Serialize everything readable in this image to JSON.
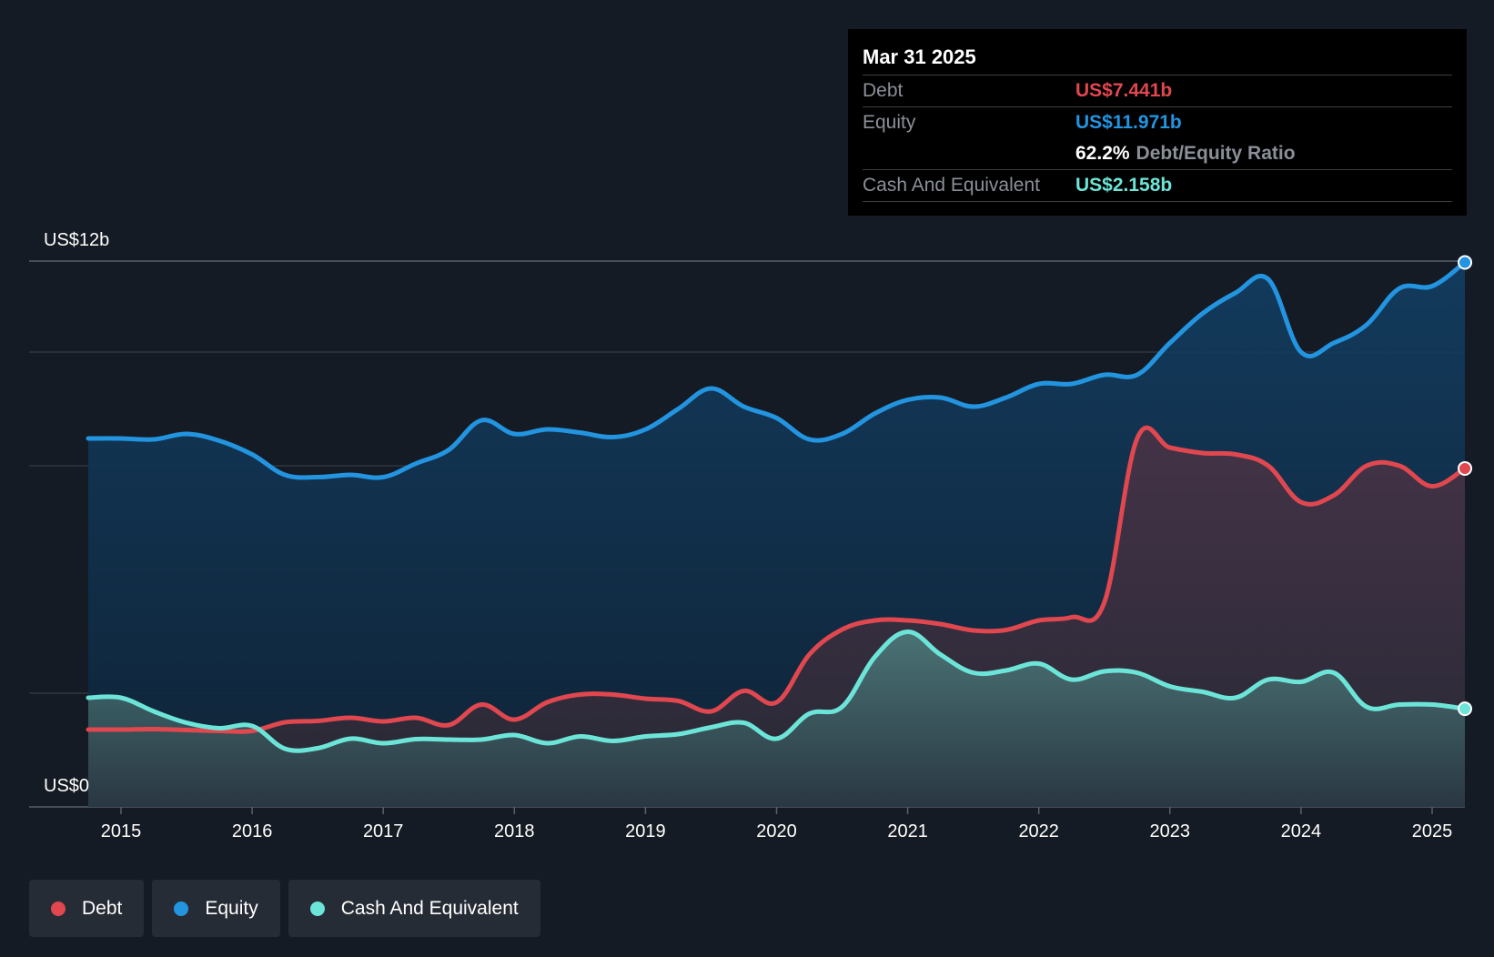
{
  "tooltip": {
    "date": "Mar 31 2025",
    "debt_label": "Debt",
    "debt_value": "US$7.441b",
    "equity_label": "Equity",
    "equity_value": "US$11.971b",
    "ratio_value": "62.2%",
    "ratio_label": "Debt/Equity Ratio",
    "cash_label": "Cash And Equivalent",
    "cash_value": "US$2.158b"
  },
  "colors": {
    "debt": "#e0474f",
    "equity": "#2394e0",
    "cash": "#6ce5d8",
    "background": "#151b24"
  },
  "legend": [
    {
      "label": "Debt",
      "color": "#e0474f"
    },
    {
      "label": "Equity",
      "color": "#2394e0"
    },
    {
      "label": "Cash And Equivalent",
      "color": "#6ce5d8"
    }
  ],
  "chart_data": {
    "type": "area",
    "title": "",
    "xlabel": "",
    "ylabel": "",
    "y_tick_labels": [
      "US$12b",
      "US$0"
    ],
    "x_tick_labels": [
      "2015",
      "2016",
      "2017",
      "2018",
      "2019",
      "2020",
      "2021",
      "2022",
      "2023",
      "2024",
      "2025"
    ],
    "x_ticks": [
      2015,
      2016,
      2017,
      2018,
      2019,
      2020,
      2021,
      2022,
      2023,
      2024,
      2025
    ],
    "xlim": [
      2014.3,
      2025.25
    ],
    "ylim": [
      0,
      12
    ],
    "gridlines": [
      2.5,
      7.5,
      10
    ],
    "series": [
      {
        "name": "Equity",
        "x": [
          2014.75,
          2015.0,
          2015.25,
          2015.5,
          2015.75,
          2016.0,
          2016.25,
          2016.5,
          2016.75,
          2017.0,
          2017.25,
          2017.5,
          2017.75,
          2018.0,
          2018.25,
          2018.5,
          2018.75,
          2019.0,
          2019.25,
          2019.5,
          2019.75,
          2020.0,
          2020.25,
          2020.5,
          2020.75,
          2021.0,
          2021.25,
          2021.5,
          2021.75,
          2022.0,
          2022.25,
          2022.5,
          2022.75,
          2023.0,
          2023.25,
          2023.5,
          2023.75,
          2024.0,
          2024.25,
          2024.5,
          2024.75,
          2025.0,
          2025.25
        ],
        "values": [
          8.1,
          8.1,
          8.08,
          8.2,
          8.05,
          7.75,
          7.3,
          7.25,
          7.3,
          7.25,
          7.55,
          7.85,
          8.5,
          8.2,
          8.3,
          8.23,
          8.13,
          8.3,
          8.75,
          9.2,
          8.8,
          8.55,
          8.08,
          8.2,
          8.65,
          8.95,
          9.0,
          8.8,
          9.0,
          9.3,
          9.3,
          9.5,
          9.5,
          10.2,
          10.85,
          11.3,
          11.6,
          10.0,
          10.2,
          10.6,
          11.4,
          11.45,
          11.971
        ]
      },
      {
        "name": "Debt",
        "x": [
          2014.75,
          2015.0,
          2015.25,
          2015.5,
          2015.75,
          2016.0,
          2016.25,
          2016.5,
          2016.75,
          2017.0,
          2017.25,
          2017.5,
          2017.75,
          2018.0,
          2018.25,
          2018.5,
          2018.75,
          2019.0,
          2019.25,
          2019.5,
          2019.75,
          2020.0,
          2020.25,
          2020.5,
          2020.75,
          2021.0,
          2021.25,
          2021.5,
          2021.75,
          2022.0,
          2022.25,
          2022.5,
          2022.75,
          2023.0,
          2023.25,
          2023.5,
          2023.75,
          2024.0,
          2024.25,
          2024.5,
          2024.75,
          2025.0,
          2025.25
        ],
        "values": [
          1.7,
          1.7,
          1.71,
          1.69,
          1.67,
          1.67,
          1.86,
          1.89,
          1.96,
          1.88,
          1.96,
          1.8,
          2.25,
          1.92,
          2.3,
          2.47,
          2.47,
          2.38,
          2.33,
          2.1,
          2.55,
          2.3,
          3.35,
          3.9,
          4.1,
          4.1,
          4.02,
          3.88,
          3.89,
          4.1,
          4.17,
          4.5,
          8.1,
          7.9,
          7.78,
          7.75,
          7.5,
          6.7,
          6.85,
          7.5,
          7.5,
          7.05,
          7.441
        ]
      },
      {
        "name": "Cash And Equivalent",
        "x": [
          2014.75,
          2015.0,
          2015.25,
          2015.5,
          2015.75,
          2016.0,
          2016.25,
          2016.5,
          2016.75,
          2017.0,
          2017.25,
          2017.5,
          2017.75,
          2018.0,
          2018.25,
          2018.5,
          2018.75,
          2019.0,
          2019.25,
          2019.5,
          2019.75,
          2020.0,
          2020.25,
          2020.5,
          2020.75,
          2021.0,
          2021.25,
          2021.5,
          2021.75,
          2022.0,
          2022.25,
          2022.5,
          2022.75,
          2023.0,
          2023.25,
          2023.5,
          2023.75,
          2024.0,
          2024.25,
          2024.5,
          2024.75,
          2025.0,
          2025.25
        ],
        "values": [
          2.4,
          2.4,
          2.1,
          1.85,
          1.73,
          1.78,
          1.28,
          1.29,
          1.5,
          1.4,
          1.49,
          1.48,
          1.48,
          1.58,
          1.4,
          1.55,
          1.45,
          1.55,
          1.6,
          1.75,
          1.85,
          1.5,
          2.05,
          2.2,
          3.3,
          3.85,
          3.35,
          2.95,
          3.0,
          3.15,
          2.8,
          2.98,
          2.95,
          2.65,
          2.53,
          2.4,
          2.8,
          2.75,
          2.95,
          2.2,
          2.25,
          2.25,
          2.158
        ]
      }
    ]
  }
}
